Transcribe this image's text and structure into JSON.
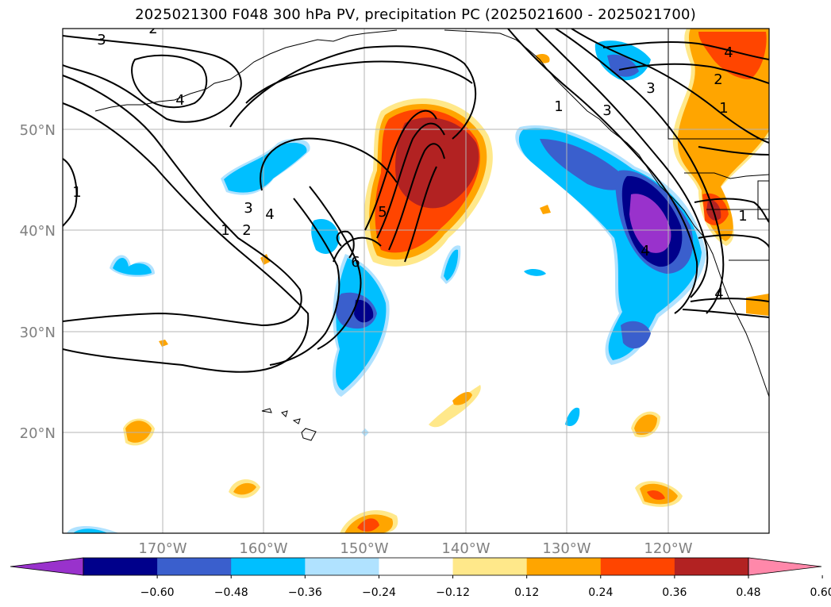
{
  "title": "2025021300 F048 300 hPa PV, precipitation PC (2025021600 - 2025021700)",
  "map": {
    "lat_labels": [
      "50°N",
      "40°N",
      "30°N",
      "20°N"
    ],
    "lon_labels": [
      "170°W",
      "160°W",
      "150°W",
      "140°W",
      "130°W",
      "120°W"
    ],
    "gridlines": true,
    "pv_contour_labels": [
      "3",
      "2",
      "4",
      "1",
      "1",
      "3",
      "4",
      "2",
      "1",
      "5",
      "6",
      "1",
      "3",
      "3",
      "4",
      "2",
      "1",
      "4",
      "4"
    ]
  },
  "colorbar": {
    "tick_labels": [
      "−0.60",
      "−0.48",
      "−0.36",
      "−0.24",
      "−0.12",
      "0.12",
      "0.24",
      "0.36",
      "0.48",
      "0.60"
    ],
    "colors": [
      "#9932cc",
      "#00008b",
      "#3a5fcd",
      "#00bfff",
      "#b0e2ff",
      "#ffffff",
      "#ffe88a",
      "#ffa500",
      "#ff4500",
      "#b22222",
      "#ff88aa"
    ]
  }
}
